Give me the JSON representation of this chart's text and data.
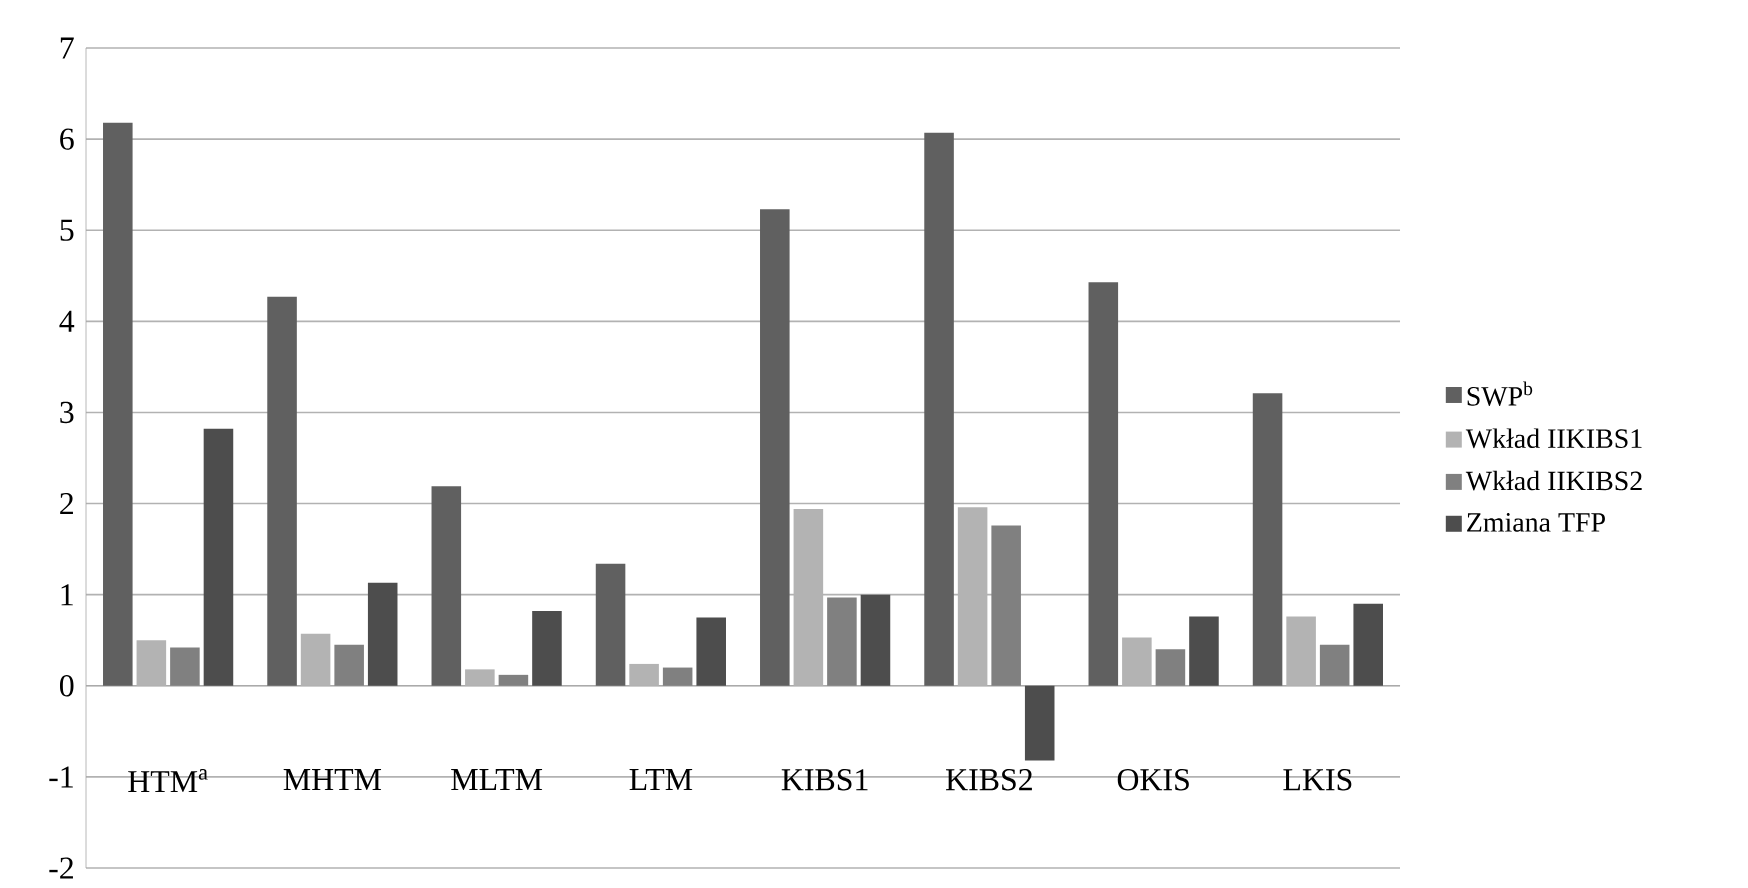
{
  "chart_data": {
    "type": "bar",
    "categories": [
      "HTM$^{a}$",
      "MHTM",
      "MLTM",
      "LTM",
      "KIBS1",
      "KIBS2",
      "OKIS",
      "LKIS"
    ],
    "series": [
      {
        "name": "SWP$^{b}$",
        "color": "#606060",
        "values": [
          6.18,
          4.27,
          2.19,
          1.34,
          5.23,
          6.07,
          4.43,
          3.21
        ]
      },
      {
        "name": "Wkład IIKIBS1",
        "color": "#b3b3b3",
        "values": [
          0.5,
          0.57,
          0.18,
          0.24,
          1.94,
          1.96,
          0.53,
          0.76
        ]
      },
      {
        "name": "Wkład IIKIBS2",
        "color": "#808080",
        "values": [
          0.42,
          0.45,
          0.12,
          0.2,
          0.97,
          1.76,
          0.4,
          0.45
        ]
      },
      {
        "name": "Zmiana TFP",
        "color": "#4d4d4d",
        "values": [
          2.82,
          1.13,
          0.82,
          0.75,
          1.0,
          -0.82,
          0.76,
          0.9
        ]
      }
    ],
    "ylim": [
      -2,
      7
    ],
    "yticks": [
      -2,
      -1,
      0,
      1,
      2,
      3,
      4,
      5,
      6,
      7
    ],
    "grid": "y",
    "legend": "right"
  }
}
